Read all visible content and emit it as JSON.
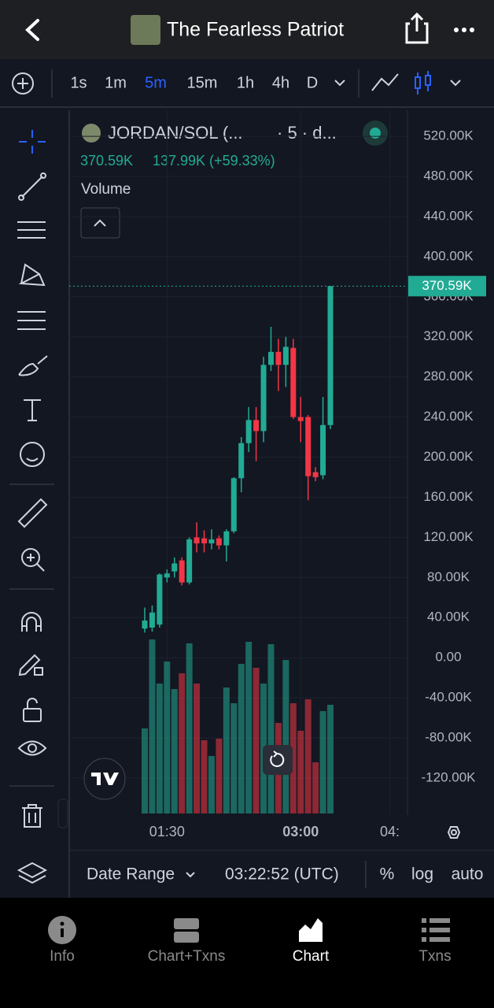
{
  "header": {
    "title": "The Fearless Patriot"
  },
  "toolbar": {
    "intervals": [
      "1s",
      "1m",
      "5m",
      "15m",
      "1h",
      "4h",
      "D"
    ],
    "active_interval": 2
  },
  "chart_data": {
    "type": "candlestick",
    "symbol": "JORDAN/SOL (...",
    "interval_text": "· 5 · d...",
    "last_price": 370590,
    "last_price_label": "370.59K",
    "change_label": "137.99K (+59.33%)",
    "volume_label": "Volume",
    "up_color": "#22ab94",
    "down_color": "#f23645",
    "open": [
      29000,
      30000,
      33000,
      80000,
      86000,
      97000,
      75000,
      120000,
      119000,
      114000,
      119000,
      112000,
      126000,
      179000,
      214000,
      237000,
      226000,
      292000,
      305000,
      292000,
      309000,
      240000,
      240000,
      185000,
      182000,
      232000
    ],
    "high": [
      50000,
      52000,
      84000,
      88000,
      100000,
      100000,
      120000,
      135000,
      127000,
      128000,
      122000,
      128000,
      180000,
      220000,
      250000,
      250000,
      300000,
      330000,
      318000,
      320000,
      318000,
      260000,
      242000,
      190000,
      260000,
      370590
    ],
    "low": [
      25000,
      26000,
      30000,
      75000,
      80000,
      72000,
      73000,
      105000,
      105000,
      108000,
      108000,
      96000,
      124000,
      165000,
      205000,
      196000,
      215000,
      286000,
      266000,
      270000,
      238000,
      215000,
      157000,
      176000,
      178000,
      228000
    ],
    "close": [
      37000,
      45000,
      83000,
      84000,
      94000,
      75000,
      118000,
      114000,
      114000,
      118000,
      112000,
      126000,
      179000,
      214000,
      237000,
      226000,
      292000,
      305000,
      292000,
      310000,
      240000,
      236000,
      181000,
      180000,
      232000,
      370590
    ],
    "volume": [
      108,
      221,
      165,
      193,
      158,
      178,
      216,
      165,
      93,
      73,
      95,
      160,
      140,
      190,
      218,
      185,
      165,
      215,
      115,
      195,
      140,
      105,
      145,
      65,
      130,
      138
    ],
    "ylim": [
      -157000,
      546000
    ],
    "yticks": [
      {
        "value": 520000,
        "label": "520.00K"
      },
      {
        "value": 480000,
        "label": "480.00K"
      },
      {
        "value": 440000,
        "label": "440.00K"
      },
      {
        "value": 400000,
        "label": "400.00K"
      },
      {
        "value": 360000,
        "label": "360.00K"
      },
      {
        "value": 320000,
        "label": "320.00K"
      },
      {
        "value": 280000,
        "label": "280.00K"
      },
      {
        "value": 240000,
        "label": "240.00K"
      },
      {
        "value": 200000,
        "label": "200.00K"
      },
      {
        "value": 160000,
        "label": "160.00K"
      },
      {
        "value": 120000,
        "label": "120.00K"
      },
      {
        "value": 80000,
        "label": "80.00K"
      },
      {
        "value": 40000,
        "label": "40.00K"
      },
      {
        "value": 0,
        "label": "0.00"
      },
      {
        "value": -40000,
        "label": "-40.00K"
      },
      {
        "value": -80000,
        "label": "-80.00K"
      },
      {
        "value": -120000,
        "label": "-120.00K"
      }
    ],
    "xticks": [
      {
        "value": 3,
        "label": "01:30"
      },
      {
        "value": 21,
        "label": "03:00"
      },
      {
        "value": 33,
        "label": "04:"
      }
    ],
    "grid": true
  },
  "footer": {
    "date_range": "Date Range",
    "time": "03:22:52 (UTC)",
    "options": [
      "%",
      "log",
      "auto"
    ]
  },
  "nav": {
    "items": [
      "Info",
      "Chart+Txns",
      "Chart",
      "Txns"
    ],
    "active": 2
  }
}
